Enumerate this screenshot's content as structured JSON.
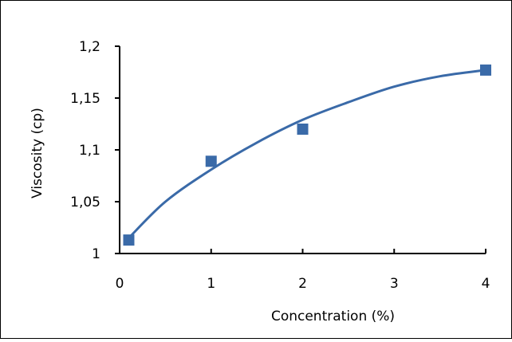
{
  "chart_data": {
    "type": "scatter",
    "title": "",
    "xlabel": "Concentration (%)",
    "ylabel": "Viscosity (cp)",
    "xlim": [
      0,
      4
    ],
    "ylim": [
      1,
      1.2
    ],
    "x_ticks": [
      0,
      1,
      2,
      3,
      4
    ],
    "x_tick_labels": [
      "0",
      "1",
      "2",
      "3",
      "4"
    ],
    "y_ticks": [
      1,
      1.05,
      1.1,
      1.15,
      1.2
    ],
    "y_tick_labels": [
      "1",
      "1,05",
      "1,1",
      "1,15",
      "1,2"
    ],
    "grid": false,
    "legend": "none",
    "series": [
      {
        "x": [
          0.1,
          1,
          2,
          4
        ],
        "y": [
          1.013,
          1.089,
          1.12,
          1.177
        ],
        "marker": "square",
        "color": "#3a6aa8"
      }
    ],
    "trendline": {
      "type": "polynomial",
      "x": [
        0.1,
        0.5,
        1,
        1.5,
        2,
        2.5,
        3,
        3.5,
        4
      ],
      "y": [
        1.015,
        1.05,
        1.081,
        1.107,
        1.129,
        1.146,
        1.161,
        1.171,
        1.177
      ],
      "color": "#3a6aa8"
    },
    "colors": {
      "marker": "#3a6aa8",
      "trendline": "#3a6aa8",
      "axis": "#000000",
      "border": "#000000"
    }
  }
}
